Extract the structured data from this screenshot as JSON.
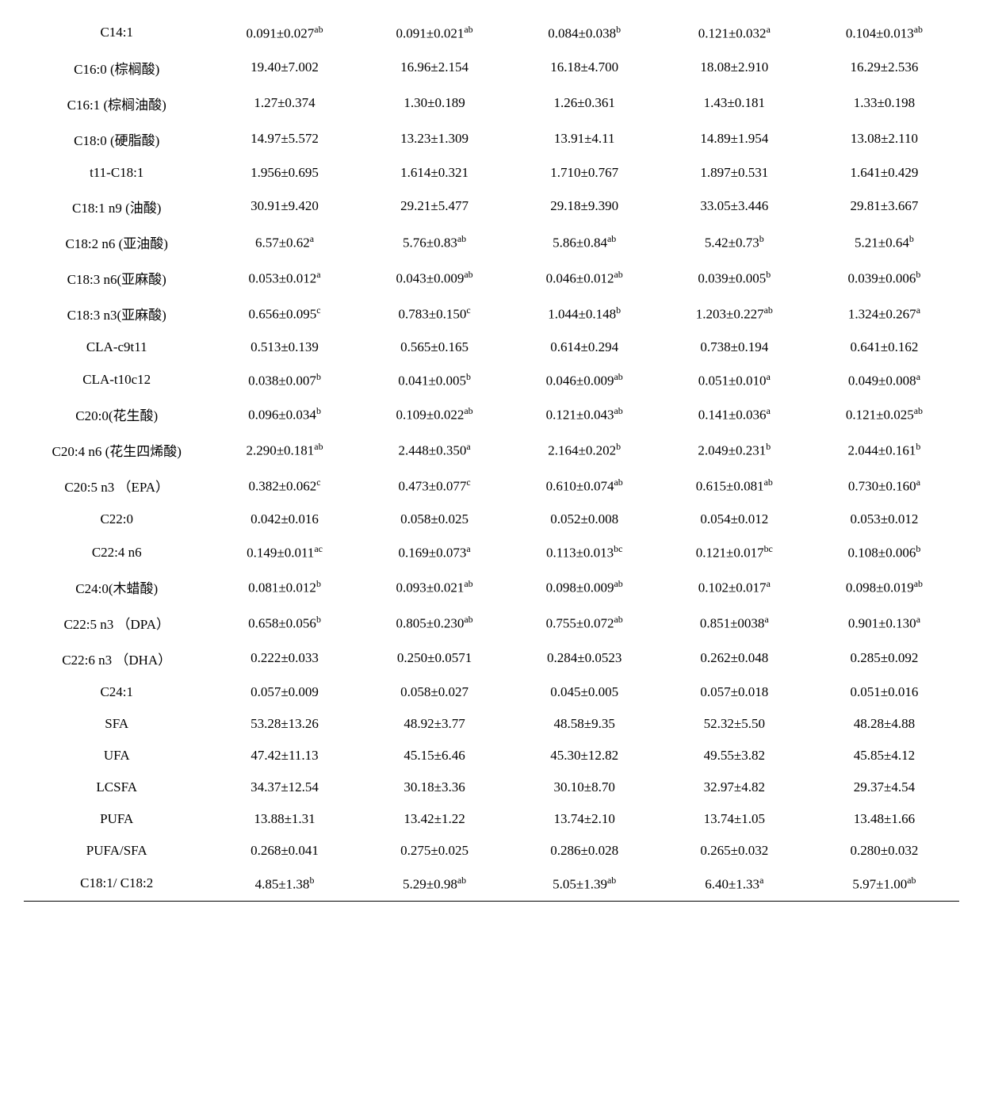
{
  "table": {
    "font_size": 17,
    "text_color": "#000000",
    "bg_color": "#ffffff",
    "border_color": "#000000",
    "rows": [
      {
        "label": "C14:1",
        "cells": [
          {
            "value": "0.091±0.027",
            "sup": "ab"
          },
          {
            "value": "0.091±0.021",
            "sup": "ab"
          },
          {
            "value": "0.084±0.038",
            "sup": "b"
          },
          {
            "value": "0.121±0.032",
            "sup": "a"
          },
          {
            "value": "0.104±0.013",
            "sup": "ab"
          }
        ]
      },
      {
        "label": "C16:0 (棕榈酸)",
        "cells": [
          {
            "value": "19.40±7.002",
            "sup": ""
          },
          {
            "value": "16.96±2.154",
            "sup": ""
          },
          {
            "value": "16.18±4.700",
            "sup": ""
          },
          {
            "value": "18.08±2.910",
            "sup": ""
          },
          {
            "value": "16.29±2.536",
            "sup": ""
          }
        ]
      },
      {
        "label": "C16:1 (棕榈油酸)",
        "cells": [
          {
            "value": "1.27±0.374",
            "sup": ""
          },
          {
            "value": "1.30±0.189",
            "sup": ""
          },
          {
            "value": "1.26±0.361",
            "sup": ""
          },
          {
            "value": "1.43±0.181",
            "sup": ""
          },
          {
            "value": "1.33±0.198",
            "sup": ""
          }
        ]
      },
      {
        "label": "C18:0 (硬脂酸)",
        "cells": [
          {
            "value": "14.97±5.572",
            "sup": ""
          },
          {
            "value": "13.23±1.309",
            "sup": ""
          },
          {
            "value": "13.91±4.11",
            "sup": ""
          },
          {
            "value": "14.89±1.954",
            "sup": ""
          },
          {
            "value": "13.08±2.110",
            "sup": ""
          }
        ]
      },
      {
        "label": "t11-C18:1",
        "cells": [
          {
            "value": "1.956±0.695",
            "sup": ""
          },
          {
            "value": "1.614±0.321",
            "sup": ""
          },
          {
            "value": "1.710±0.767",
            "sup": ""
          },
          {
            "value": "1.897±0.531",
            "sup": ""
          },
          {
            "value": "1.641±0.429",
            "sup": ""
          }
        ]
      },
      {
        "label": "C18:1 n9 (油酸)",
        "cells": [
          {
            "value": "30.91±9.420",
            "sup": ""
          },
          {
            "value": "29.21±5.477",
            "sup": ""
          },
          {
            "value": "29.18±9.390",
            "sup": ""
          },
          {
            "value": "33.05±3.446",
            "sup": ""
          },
          {
            "value": "29.81±3.667",
            "sup": ""
          }
        ]
      },
      {
        "label": "C18:2 n6 (亚油酸)",
        "cells": [
          {
            "value": "6.57±0.62",
            "sup": "a"
          },
          {
            "value": "5.76±0.83",
            "sup": "ab"
          },
          {
            "value": "5.86±0.84",
            "sup": "ab"
          },
          {
            "value": "5.42±0.73",
            "sup": "b"
          },
          {
            "value": "5.21±0.64",
            "sup": "b"
          }
        ]
      },
      {
        "label": "C18:3 n6(亚麻酸)",
        "cells": [
          {
            "value": "0.053±0.012",
            "sup": "a"
          },
          {
            "value": "0.043±0.009",
            "sup": "ab"
          },
          {
            "value": "0.046±0.012",
            "sup": "ab"
          },
          {
            "value": "0.039±0.005",
            "sup": "b"
          },
          {
            "value": "0.039±0.006",
            "sup": "b"
          }
        ]
      },
      {
        "label": "C18:3 n3(亚麻酸)",
        "cells": [
          {
            "value": "0.656±0.095",
            "sup": "c"
          },
          {
            "value": "0.783±0.150",
            "sup": "c"
          },
          {
            "value": "1.044±0.148",
            "sup": "b"
          },
          {
            "value": "1.203±0.227",
            "sup": "ab"
          },
          {
            "value": "1.324±0.267",
            "sup": "a"
          }
        ]
      },
      {
        "label": "CLA-c9t11",
        "cells": [
          {
            "value": "0.513±0.139",
            "sup": ""
          },
          {
            "value": "0.565±0.165",
            "sup": ""
          },
          {
            "value": "0.614±0.294",
            "sup": ""
          },
          {
            "value": "0.738±0.194",
            "sup": ""
          },
          {
            "value": "0.641±0.162",
            "sup": ""
          }
        ]
      },
      {
        "label": "CLA-t10c12",
        "cells": [
          {
            "value": "0.038±0.007",
            "sup": "b"
          },
          {
            "value": "0.041±0.005",
            "sup": "b"
          },
          {
            "value": "0.046±0.009",
            "sup": "ab"
          },
          {
            "value": "0.051±0.010",
            "sup": "a"
          },
          {
            "value": "0.049±0.008",
            "sup": "a"
          }
        ]
      },
      {
        "label": "C20:0(花生酸)",
        "cells": [
          {
            "value": "0.096±0.034",
            "sup": "b"
          },
          {
            "value": "0.109±0.022",
            "sup": "ab"
          },
          {
            "value": "0.121±0.043",
            "sup": "ab"
          },
          {
            "value": "0.141±0.036",
            "sup": "a"
          },
          {
            "value": "0.121±0.025",
            "sup": "ab"
          }
        ]
      },
      {
        "label": "C20:4 n6 (花生四烯酸)",
        "cells": [
          {
            "value": "2.290±0.181",
            "sup": "ab"
          },
          {
            "value": "2.448±0.350",
            "sup": "a"
          },
          {
            "value": "2.164±0.202",
            "sup": "b"
          },
          {
            "value": "2.049±0.231",
            "sup": "b"
          },
          {
            "value": "2.044±0.161",
            "sup": "b"
          }
        ]
      },
      {
        "label": "C20:5 n3  （EPA）",
        "cells": [
          {
            "value": "0.382±0.062",
            "sup": "c"
          },
          {
            "value": "0.473±0.077",
            "sup": "c"
          },
          {
            "value": "0.610±0.074",
            "sup": "ab"
          },
          {
            "value": "0.615±0.081",
            "sup": "ab"
          },
          {
            "value": "0.730±0.160",
            "sup": "a"
          }
        ]
      },
      {
        "label": "C22:0",
        "cells": [
          {
            "value": "0.042±0.016",
            "sup": ""
          },
          {
            "value": "0.058±0.025",
            "sup": ""
          },
          {
            "value": "0.052±0.008",
            "sup": ""
          },
          {
            "value": "0.054±0.012",
            "sup": ""
          },
          {
            "value": "0.053±0.012",
            "sup": ""
          }
        ]
      },
      {
        "label": "C22:4 n6",
        "cells": [
          {
            "value": "0.149±0.011",
            "sup": "ac"
          },
          {
            "value": "0.169±0.073",
            "sup": "a"
          },
          {
            "value": "0.113±0.013",
            "sup": "bc"
          },
          {
            "value": "0.121±0.017",
            "sup": "bc"
          },
          {
            "value": "0.108±0.006",
            "sup": "b"
          }
        ]
      },
      {
        "label": "C24:0(木蜡酸)",
        "cells": [
          {
            "value": "0.081±0.012",
            "sup": "b"
          },
          {
            "value": "0.093±0.021",
            "sup": "ab"
          },
          {
            "value": "0.098±0.009",
            "sup": "ab"
          },
          {
            "value": "0.102±0.017",
            "sup": "a"
          },
          {
            "value": "0.098±0.019",
            "sup": "ab"
          }
        ]
      },
      {
        "label": "C22:5 n3  （DPA）",
        "cells": [
          {
            "value": "0.658±0.056",
            "sup": "b"
          },
          {
            "value": "0.805±0.230",
            "sup": "ab"
          },
          {
            "value": "0.755±0.072",
            "sup": "ab"
          },
          {
            "value": "0.851±0038",
            "sup": "a"
          },
          {
            "value": "0.901±0.130",
            "sup": "a"
          }
        ]
      },
      {
        "label": "C22:6 n3  （DHA）",
        "cells": [
          {
            "value": "0.222±0.033",
            "sup": ""
          },
          {
            "value": "0.250±0.0571",
            "sup": ""
          },
          {
            "value": "0.284±0.0523",
            "sup": ""
          },
          {
            "value": "0.262±0.048",
            "sup": ""
          },
          {
            "value": "0.285±0.092",
            "sup": ""
          }
        ]
      },
      {
        "label": "C24:1",
        "cells": [
          {
            "value": "0.057±0.009",
            "sup": ""
          },
          {
            "value": "0.058±0.027",
            "sup": ""
          },
          {
            "value": "0.045±0.005",
            "sup": ""
          },
          {
            "value": "0.057±0.018",
            "sup": ""
          },
          {
            "value": "0.051±0.016",
            "sup": ""
          }
        ]
      },
      {
        "label": "SFA",
        "cells": [
          {
            "value": "53.28±13.26",
            "sup": ""
          },
          {
            "value": "48.92±3.77",
            "sup": ""
          },
          {
            "value": "48.58±9.35",
            "sup": ""
          },
          {
            "value": "52.32±5.50",
            "sup": ""
          },
          {
            "value": "48.28±4.88",
            "sup": ""
          }
        ]
      },
      {
        "label": "UFA",
        "cells": [
          {
            "value": "47.42±11.13",
            "sup": ""
          },
          {
            "value": "45.15±6.46",
            "sup": ""
          },
          {
            "value": "45.30±12.82",
            "sup": ""
          },
          {
            "value": "49.55±3.82",
            "sup": ""
          },
          {
            "value": "45.85±4.12",
            "sup": ""
          }
        ]
      },
      {
        "label": "LCSFA",
        "cells": [
          {
            "value": "34.37±12.54",
            "sup": ""
          },
          {
            "value": "30.18±3.36",
            "sup": ""
          },
          {
            "value": "30.10±8.70",
            "sup": ""
          },
          {
            "value": "32.97±4.82",
            "sup": ""
          },
          {
            "value": "29.37±4.54",
            "sup": ""
          }
        ]
      },
      {
        "label": "PUFA",
        "cells": [
          {
            "value": "13.88±1.31",
            "sup": ""
          },
          {
            "value": "13.42±1.22",
            "sup": ""
          },
          {
            "value": "13.74±2.10",
            "sup": ""
          },
          {
            "value": "13.74±1.05",
            "sup": ""
          },
          {
            "value": "13.48±1.66",
            "sup": ""
          }
        ]
      },
      {
        "label": "PUFA/SFA",
        "cells": [
          {
            "value": "0.268±0.041",
            "sup": ""
          },
          {
            "value": "0.275±0.025",
            "sup": ""
          },
          {
            "value": "0.286±0.028",
            "sup": ""
          },
          {
            "value": "0.265±0.032",
            "sup": ""
          },
          {
            "value": "0.280±0.032",
            "sup": ""
          }
        ]
      },
      {
        "label": "C18:1/ C18:2",
        "cells": [
          {
            "value": "4.85±1.38",
            "sup": "b"
          },
          {
            "value": "5.29±0.98",
            "sup": "ab"
          },
          {
            "value": "5.05±1.39",
            "sup": "ab"
          },
          {
            "value": "6.40±1.33",
            "sup": "a"
          },
          {
            "value": "5.97±1.00",
            "sup": "ab"
          }
        ]
      }
    ]
  }
}
